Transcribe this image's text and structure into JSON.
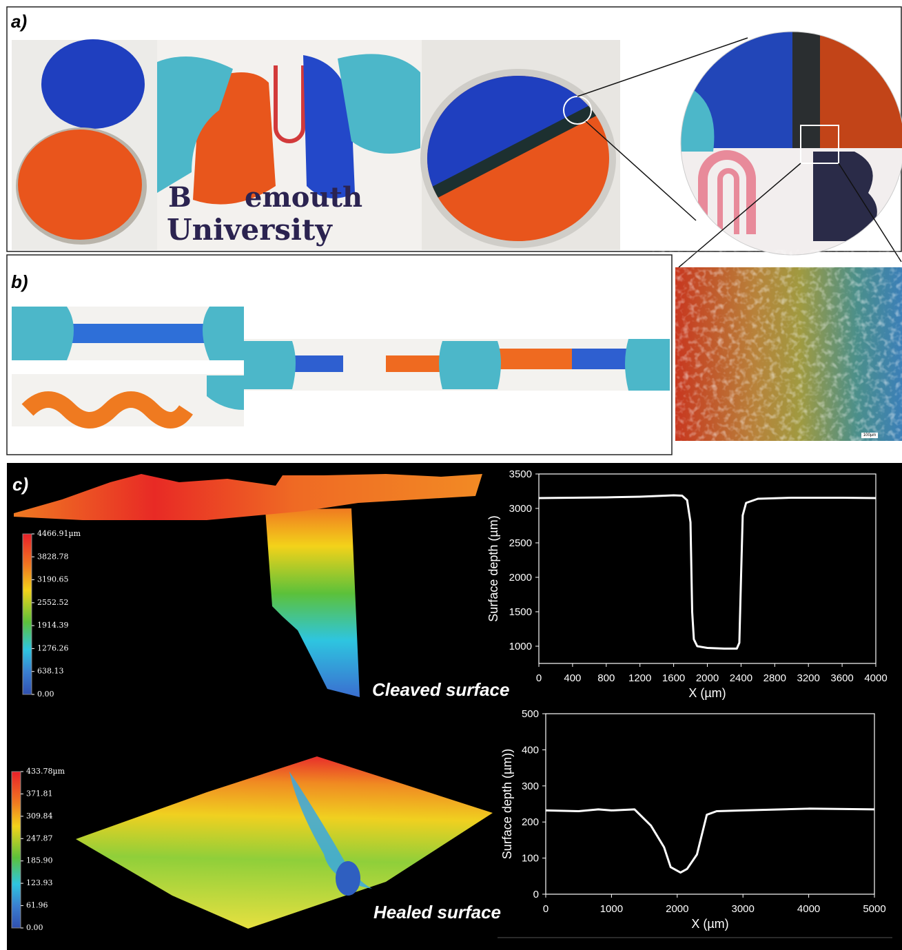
{
  "panel_labels": [
    "a)",
    "b)",
    "c)"
  ],
  "photo_text": [
    "emouth",
    "University"
  ],
  "micrograph_scale": "100µm",
  "captions": [
    "Cleaved surface",
    "Healed surface"
  ],
  "colorbars": [
    {
      "ticks": [
        {
          "value": 4466.91,
          "label": "4466.91µm"
        },
        3828.78,
        3190.65,
        2552.52,
        1914.39,
        1276.26,
        638.13,
        {
          "value": 0,
          "label": "0.00"
        }
      ]
    },
    {
      "ticks": [
        {
          "value": 433.78,
          "label": "433.78µm"
        },
        371.81,
        309.84,
        247.87,
        {
          "value": 185.9,
          "label": "185.90"
        },
        123.93,
        61.96,
        {
          "value": 0,
          "label": "0.00"
        }
      ]
    }
  ],
  "chart_data": [
    {
      "type": "line",
      "x_label": "X (µm)",
      "y_label": "Surface depth (µm)",
      "xlim": [
        0,
        4000
      ],
      "xticks": [
        0,
        400,
        800,
        1200,
        1600,
        2000,
        2400,
        2800,
        3200,
        3600,
        4000
      ],
      "ylim": [
        750,
        3500
      ],
      "yticks": [
        1000,
        1500,
        2000,
        2500,
        3000,
        3500
      ],
      "x": [
        0,
        400,
        800,
        1200,
        1600,
        1700,
        1760,
        1800,
        1820,
        1840,
        1880,
        2000,
        2200,
        2350,
        2380,
        2400,
        2420,
        2460,
        2600,
        3000,
        3600,
        4000
      ],
      "series": [
        {
          "color": "#ffffff",
          "values": [
            3150,
            3155,
            3160,
            3170,
            3190,
            3185,
            3120,
            2800,
            1500,
            1100,
            1000,
            975,
            965,
            965,
            1050,
            2000,
            2900,
            3080,
            3140,
            3155,
            3155,
            3150
          ]
        }
      ]
    },
    {
      "type": "line",
      "x_label": "X (µm)",
      "y_label": "Surface depth (µm))",
      "xlim": [
        0,
        5000
      ],
      "xticks": [
        0,
        1000,
        2000,
        3000,
        4000,
        5000
      ],
      "ylim": [
        0,
        500
      ],
      "yticks": [
        0,
        100,
        200,
        300,
        400,
        500
      ],
      "x": [
        0,
        500,
        800,
        1000,
        1350,
        1600,
        1800,
        1900,
        2050,
        2150,
        2300,
        2450,
        2600,
        3000,
        4000,
        5000
      ],
      "series": [
        {
          "color": "#ffffff",
          "values": [
            232,
            230,
            235,
            232,
            235,
            190,
            130,
            75,
            60,
            70,
            110,
            220,
            230,
            232,
            237,
            235
          ]
        }
      ]
    }
  ]
}
